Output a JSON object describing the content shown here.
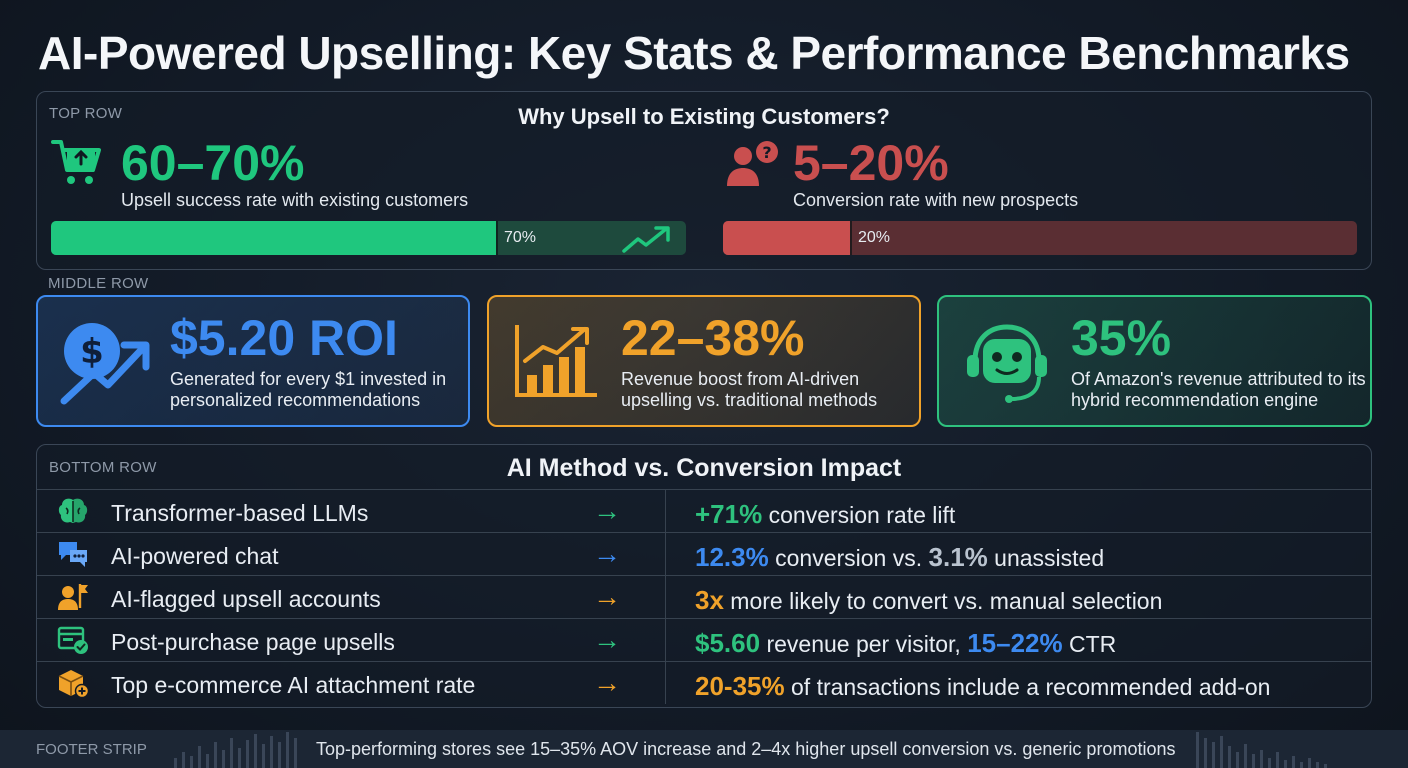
{
  "title": "AI-Powered Upselling: Key Stats & Performance Benchmarks",
  "top_row": {
    "label": "TOP ROW",
    "heading": "Why Upsell to Existing Customers?",
    "existing": {
      "value": "60–70%",
      "caption": "Upsell success rate with existing customers",
      "bar_label": "70%",
      "bar_fraction": 0.7,
      "color": "#1fc77e",
      "icon": "shopping-cart-icon"
    },
    "new": {
      "value": "5–20%",
      "caption": "Conversion rate with new prospects",
      "bar_label": "20%",
      "bar_fraction": 0.2,
      "color": "#c94f4f",
      "icon": "user-question-icon"
    }
  },
  "middle_row": {
    "label": "MIDDLE ROW",
    "cards": [
      {
        "value": "$5.20 ROI",
        "desc": "Generated for every $1 invested in personalized recommendations",
        "color": "#3d8af0",
        "icon": "dollar-growth-icon"
      },
      {
        "value": "22–38%",
        "desc": "Revenue boost from AI-driven upselling vs. traditional methods",
        "color": "#f0a22a",
        "icon": "bar-chart-icon"
      },
      {
        "value": "35%",
        "desc": "Of Amazon's revenue attributed to its hybrid recommendation engine",
        "color": "#2ec27e",
        "icon": "robot-icon"
      }
    ]
  },
  "bottom_row": {
    "label": "BOTTOM ROW",
    "heading": "AI Method vs. Conversion Impact",
    "rows": [
      {
        "method": "Transformer-based LLMs",
        "icon": "brain-icon",
        "arrow_color": "#2ec27e",
        "impact": [
          {
            "t": "+71%",
            "c": "#2ec27e"
          },
          {
            "t": " conversion rate lift"
          }
        ]
      },
      {
        "method": "AI-powered chat",
        "icon": "chat-icon",
        "arrow_color": "#3d8af0",
        "impact": [
          {
            "t": "12.3%",
            "c": "#3d8af0"
          },
          {
            "t": " conversion vs. "
          },
          {
            "t": "3.1%",
            "c": "#b9c3cf"
          },
          {
            "t": " unassisted"
          }
        ]
      },
      {
        "method": "AI-flagged upsell accounts",
        "icon": "user-flag-icon",
        "arrow_color": "#f0a22a",
        "impact": [
          {
            "t": "3x",
            "c": "#f0a22a"
          },
          {
            "t": " more likely to convert vs. manual selection"
          }
        ]
      },
      {
        "method": "Post-purchase page upsells",
        "icon": "browser-check-icon",
        "arrow_color": "#2ec27e",
        "impact": [
          {
            "t": "$5.60",
            "c": "#2ec27e"
          },
          {
            "t": " revenue per visitor, "
          },
          {
            "t": "15–22%",
            "c": "#3d8af0"
          },
          {
            "t": " CTR"
          }
        ]
      },
      {
        "method": "Top e-commerce AI attachment rate",
        "icon": "package-plus-icon",
        "arrow_color": "#f0a22a",
        "impact": [
          {
            "t": "20-35%",
            "c": "#f0a22a"
          },
          {
            "t": " of transactions include a recommended add-on"
          }
        ]
      }
    ]
  },
  "footer": {
    "label": "FOOTER STRIP",
    "text": "Top-performing stores see 15–35% AOV increase and 2–4x higher upsell conversion vs. generic promotions"
  }
}
